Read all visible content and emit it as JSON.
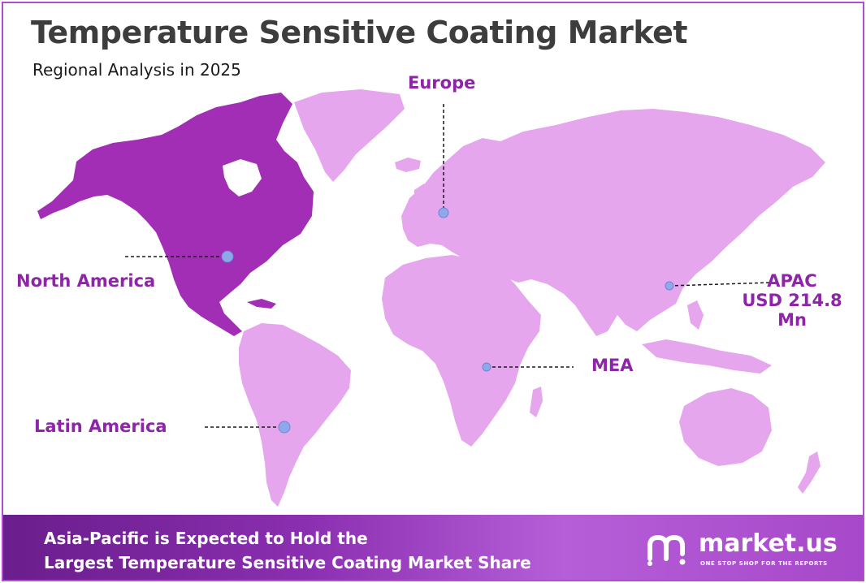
{
  "header": {
    "title": "Temperature Sensitive Coating Market",
    "subtitle": "Regional Analysis in 2025"
  },
  "regions": {
    "europe": "Europe",
    "north_america": "North America",
    "apac_name": "APAC",
    "apac_value": "USD 214.8",
    "apac_unit": "Mn",
    "mea": "MEA",
    "latin_america": "Latin America"
  },
  "highlighted_region": "North America",
  "colors": {
    "land": "#e5a6ee",
    "highlight": "#a12eb5",
    "label": "#8e24a8",
    "marker": "#8fa8ea",
    "border": "#b24bd0"
  },
  "banner": {
    "line1": "Asia-Pacific is Expected to Hold the",
    "line2": "Largest Temperature Sensitive Coating Market Share"
  },
  "brand": {
    "name": "market.us",
    "tagline": "ONE STOP SHOP FOR THE REPORTS"
  }
}
